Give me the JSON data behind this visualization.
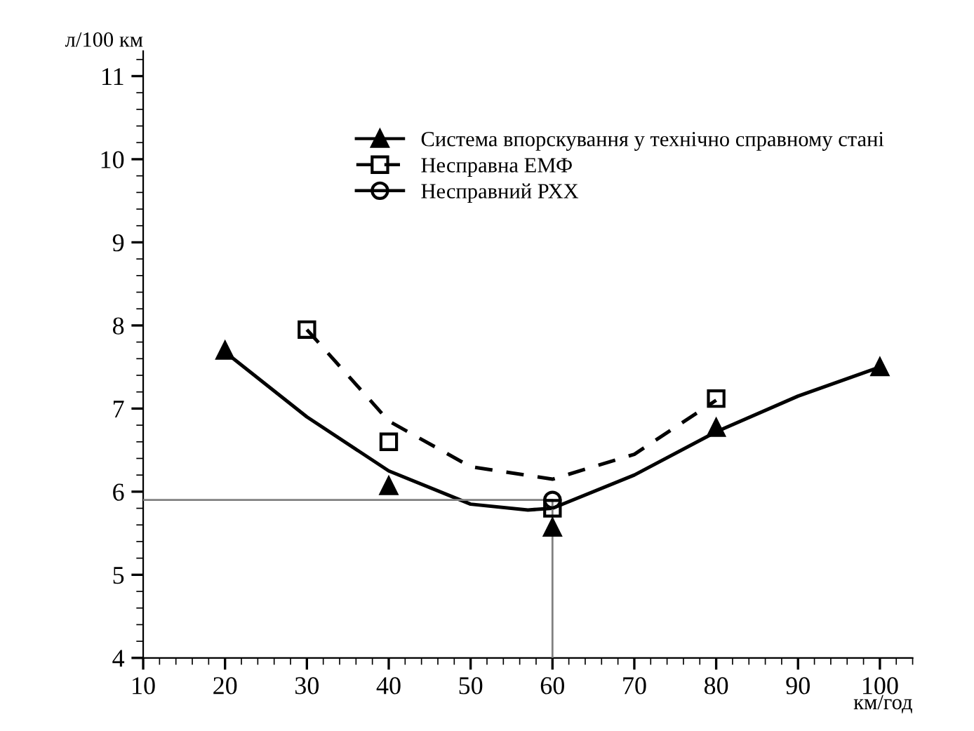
{
  "chart_data": {
    "type": "line",
    "xlabel": "км/год",
    "ylabel": "л/100 км",
    "xlim": [
      10,
      104
    ],
    "ylim": [
      4,
      11.3
    ],
    "xticks": [
      10,
      20,
      30,
      40,
      50,
      60,
      70,
      80,
      90,
      100
    ],
    "yticks": [
      4,
      5,
      6,
      7,
      8,
      9,
      10,
      11
    ],
    "grid": false,
    "legend": "top",
    "series": [
      {
        "name": "Система впорскування у технічно справному стані",
        "type": "scatter",
        "marker": "triangle",
        "color": "#000000",
        "x": [
          20,
          40,
          60,
          80,
          100
        ],
        "values": [
          7.7,
          6.07,
          5.57,
          6.77,
          7.5
        ]
      },
      {
        "line_style": "solid",
        "color": "#000000",
        "x": [
          20,
          30,
          40,
          50,
          57,
          60,
          70,
          80,
          90,
          100
        ],
        "values": [
          7.68,
          6.9,
          6.25,
          5.85,
          5.78,
          5.8,
          6.2,
          6.72,
          7.15,
          7.5
        ]
      },
      {
        "name": "Несправна ЕМФ",
        "type": "scatter",
        "marker": "square",
        "color": "#000000",
        "x": [
          30,
          40,
          60,
          80
        ],
        "values": [
          7.95,
          6.6,
          5.8,
          7.12
        ]
      },
      {
        "line_style": "dashed",
        "color": "#000000",
        "x": [
          30,
          40,
          50,
          60,
          70,
          80
        ],
        "values": [
          7.95,
          6.85,
          6.3,
          6.15,
          6.45,
          7.1
        ]
      },
      {
        "name": "Несправний РХХ",
        "type": "scatter",
        "marker": "circle",
        "color": "#000000",
        "x": [
          60
        ],
        "values": [
          5.9
        ]
      },
      {
        "line_style": "solid",
        "color": "#808080",
        "x": [
          10,
          60,
          60
        ],
        "values": [
          5.9,
          5.9,
          4
        ]
      }
    ]
  }
}
